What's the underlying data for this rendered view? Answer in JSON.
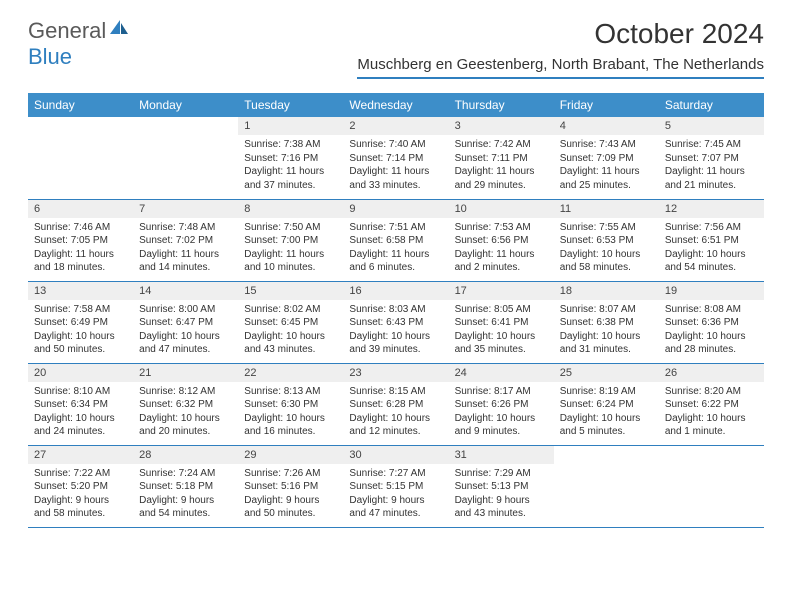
{
  "brand": {
    "part1": "General",
    "part2": "Blue"
  },
  "title": "October 2024",
  "location": "Muschberg en Geestenberg, North Brabant, The Netherlands",
  "colors": {
    "header_bg": "#3d8ec9",
    "accent": "#2f7fbf",
    "daynum_bg": "#efefef",
    "text": "#333333",
    "brand_gray": "#5a5a5a"
  },
  "weekdays": [
    "Sunday",
    "Monday",
    "Tuesday",
    "Wednesday",
    "Thursday",
    "Friday",
    "Saturday"
  ],
  "weeks": [
    [
      {
        "empty": true
      },
      {
        "empty": true
      },
      {
        "num": "1",
        "sunrise": "Sunrise: 7:38 AM",
        "sunset": "Sunset: 7:16 PM",
        "daylight": "Daylight: 11 hours and 37 minutes."
      },
      {
        "num": "2",
        "sunrise": "Sunrise: 7:40 AM",
        "sunset": "Sunset: 7:14 PM",
        "daylight": "Daylight: 11 hours and 33 minutes."
      },
      {
        "num": "3",
        "sunrise": "Sunrise: 7:42 AM",
        "sunset": "Sunset: 7:11 PM",
        "daylight": "Daylight: 11 hours and 29 minutes."
      },
      {
        "num": "4",
        "sunrise": "Sunrise: 7:43 AM",
        "sunset": "Sunset: 7:09 PM",
        "daylight": "Daylight: 11 hours and 25 minutes."
      },
      {
        "num": "5",
        "sunrise": "Sunrise: 7:45 AM",
        "sunset": "Sunset: 7:07 PM",
        "daylight": "Daylight: 11 hours and 21 minutes."
      }
    ],
    [
      {
        "num": "6",
        "sunrise": "Sunrise: 7:46 AM",
        "sunset": "Sunset: 7:05 PM",
        "daylight": "Daylight: 11 hours and 18 minutes."
      },
      {
        "num": "7",
        "sunrise": "Sunrise: 7:48 AM",
        "sunset": "Sunset: 7:02 PM",
        "daylight": "Daylight: 11 hours and 14 minutes."
      },
      {
        "num": "8",
        "sunrise": "Sunrise: 7:50 AM",
        "sunset": "Sunset: 7:00 PM",
        "daylight": "Daylight: 11 hours and 10 minutes."
      },
      {
        "num": "9",
        "sunrise": "Sunrise: 7:51 AM",
        "sunset": "Sunset: 6:58 PM",
        "daylight": "Daylight: 11 hours and 6 minutes."
      },
      {
        "num": "10",
        "sunrise": "Sunrise: 7:53 AM",
        "sunset": "Sunset: 6:56 PM",
        "daylight": "Daylight: 11 hours and 2 minutes."
      },
      {
        "num": "11",
        "sunrise": "Sunrise: 7:55 AM",
        "sunset": "Sunset: 6:53 PM",
        "daylight": "Daylight: 10 hours and 58 minutes."
      },
      {
        "num": "12",
        "sunrise": "Sunrise: 7:56 AM",
        "sunset": "Sunset: 6:51 PM",
        "daylight": "Daylight: 10 hours and 54 minutes."
      }
    ],
    [
      {
        "num": "13",
        "sunrise": "Sunrise: 7:58 AM",
        "sunset": "Sunset: 6:49 PM",
        "daylight": "Daylight: 10 hours and 50 minutes."
      },
      {
        "num": "14",
        "sunrise": "Sunrise: 8:00 AM",
        "sunset": "Sunset: 6:47 PM",
        "daylight": "Daylight: 10 hours and 47 minutes."
      },
      {
        "num": "15",
        "sunrise": "Sunrise: 8:02 AM",
        "sunset": "Sunset: 6:45 PM",
        "daylight": "Daylight: 10 hours and 43 minutes."
      },
      {
        "num": "16",
        "sunrise": "Sunrise: 8:03 AM",
        "sunset": "Sunset: 6:43 PM",
        "daylight": "Daylight: 10 hours and 39 minutes."
      },
      {
        "num": "17",
        "sunrise": "Sunrise: 8:05 AM",
        "sunset": "Sunset: 6:41 PM",
        "daylight": "Daylight: 10 hours and 35 minutes."
      },
      {
        "num": "18",
        "sunrise": "Sunrise: 8:07 AM",
        "sunset": "Sunset: 6:38 PM",
        "daylight": "Daylight: 10 hours and 31 minutes."
      },
      {
        "num": "19",
        "sunrise": "Sunrise: 8:08 AM",
        "sunset": "Sunset: 6:36 PM",
        "daylight": "Daylight: 10 hours and 28 minutes."
      }
    ],
    [
      {
        "num": "20",
        "sunrise": "Sunrise: 8:10 AM",
        "sunset": "Sunset: 6:34 PM",
        "daylight": "Daylight: 10 hours and 24 minutes."
      },
      {
        "num": "21",
        "sunrise": "Sunrise: 8:12 AM",
        "sunset": "Sunset: 6:32 PM",
        "daylight": "Daylight: 10 hours and 20 minutes."
      },
      {
        "num": "22",
        "sunrise": "Sunrise: 8:13 AM",
        "sunset": "Sunset: 6:30 PM",
        "daylight": "Daylight: 10 hours and 16 minutes."
      },
      {
        "num": "23",
        "sunrise": "Sunrise: 8:15 AM",
        "sunset": "Sunset: 6:28 PM",
        "daylight": "Daylight: 10 hours and 12 minutes."
      },
      {
        "num": "24",
        "sunrise": "Sunrise: 8:17 AM",
        "sunset": "Sunset: 6:26 PM",
        "daylight": "Daylight: 10 hours and 9 minutes."
      },
      {
        "num": "25",
        "sunrise": "Sunrise: 8:19 AM",
        "sunset": "Sunset: 6:24 PM",
        "daylight": "Daylight: 10 hours and 5 minutes."
      },
      {
        "num": "26",
        "sunrise": "Sunrise: 8:20 AM",
        "sunset": "Sunset: 6:22 PM",
        "daylight": "Daylight: 10 hours and 1 minute."
      }
    ],
    [
      {
        "num": "27",
        "sunrise": "Sunrise: 7:22 AM",
        "sunset": "Sunset: 5:20 PM",
        "daylight": "Daylight: 9 hours and 58 minutes."
      },
      {
        "num": "28",
        "sunrise": "Sunrise: 7:24 AM",
        "sunset": "Sunset: 5:18 PM",
        "daylight": "Daylight: 9 hours and 54 minutes."
      },
      {
        "num": "29",
        "sunrise": "Sunrise: 7:26 AM",
        "sunset": "Sunset: 5:16 PM",
        "daylight": "Daylight: 9 hours and 50 minutes."
      },
      {
        "num": "30",
        "sunrise": "Sunrise: 7:27 AM",
        "sunset": "Sunset: 5:15 PM",
        "daylight": "Daylight: 9 hours and 47 minutes."
      },
      {
        "num": "31",
        "sunrise": "Sunrise: 7:29 AM",
        "sunset": "Sunset: 5:13 PM",
        "daylight": "Daylight: 9 hours and 43 minutes."
      },
      {
        "empty": true
      },
      {
        "empty": true
      }
    ]
  ]
}
